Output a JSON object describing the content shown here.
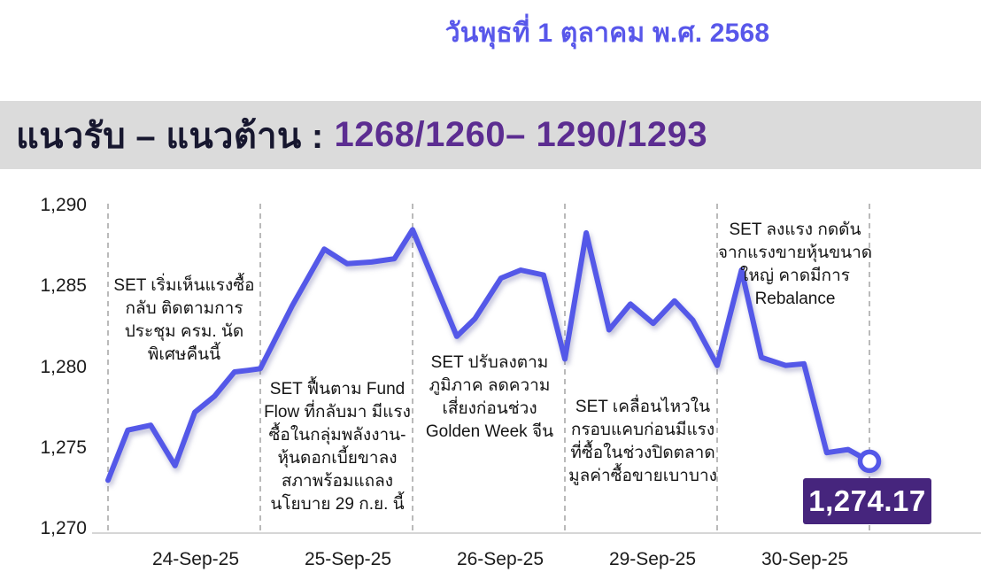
{
  "page": {
    "date_header": "วันพุธที่ 1 ตุลาคม พ.ศ. 2568"
  },
  "header": {
    "label": "แนวรับ – แนวต้าน :",
    "values": "1268/1260– 1290/1293"
  },
  "colors": {
    "date_text": "#5857EA",
    "header_bg": "#DBDBDB",
    "header_label_text": "#17172F",
    "header_values_text": "#5C2D91",
    "line": "#5458E8",
    "day_separator": "#A9A9A9",
    "axis_line": "#C9C9C9",
    "value_box_bg": "#46257D",
    "value_box_text": "#FFFFFF"
  },
  "chart_data": {
    "type": "line",
    "title": "SET Index intraday, 24–30 Sep 2025",
    "xlabel": "",
    "ylabel": "",
    "ylim": [
      1270,
      1290
    ],
    "xlim": [
      0,
      5
    ],
    "yticks": [
      1290,
      1285,
      1280,
      1275,
      1270
    ],
    "ytick_labels": [
      "1,290",
      "1,285",
      "1,280",
      "1,275",
      "1,270"
    ],
    "categories": [
      "24-Sep-25",
      "25-Sep-25",
      "26-Sep-25",
      "29-Sep-25",
      "30-Sep-25"
    ],
    "grid": "vertical dashed day-separator lines, no horizontal gridlines",
    "legend_position": "none",
    "series": [
      {
        "name": "SET Index",
        "points": [
          [
            0.0,
            1273.0
          ],
          [
            0.13,
            1276.1
          ],
          [
            0.28,
            1276.4
          ],
          [
            0.44,
            1273.9
          ],
          [
            0.57,
            1277.2
          ],
          [
            0.7,
            1278.2
          ],
          [
            0.83,
            1279.7
          ],
          [
            0.92,
            1279.8
          ],
          [
            1.0,
            1279.9
          ],
          [
            1.21,
            1283.8
          ],
          [
            1.42,
            1287.3
          ],
          [
            1.57,
            1286.4
          ],
          [
            1.73,
            1286.5
          ],
          [
            1.88,
            1286.7
          ],
          [
            2.0,
            1288.5
          ],
          [
            2.29,
            1281.9
          ],
          [
            2.41,
            1283.0
          ],
          [
            2.58,
            1285.5
          ],
          [
            2.71,
            1286.0
          ],
          [
            2.86,
            1285.7
          ],
          [
            3.0,
            1280.5
          ],
          [
            3.14,
            1288.3
          ],
          [
            3.29,
            1282.3
          ],
          [
            3.43,
            1283.9
          ],
          [
            3.58,
            1282.7
          ],
          [
            3.72,
            1284.1
          ],
          [
            3.84,
            1282.9
          ],
          [
            4.0,
            1280.1
          ],
          [
            4.16,
            1286.0
          ],
          [
            4.29,
            1280.6
          ],
          [
            4.45,
            1280.1
          ],
          [
            4.57,
            1280.2
          ],
          [
            4.72,
            1274.7
          ],
          [
            4.86,
            1274.9
          ],
          [
            5.0,
            1274.17
          ]
        ]
      }
    ],
    "last_value": 1274.17,
    "last_value_label": "1,274.17",
    "annotations": [
      {
        "day": "24-Sep-25",
        "text": "SET เริ่มเห็นแรงซื้อ\nกลับ ติดตามการ\nประชุม ครม. นัด\nพิเศษคืนนี้"
      },
      {
        "day": "25-Sep-25",
        "text": "SET ฟื้นตาม Fund\nFlow ที่กลับมา มีแรง\nซื้อในกลุ่มพลังงาน-\nหุ้นดอกเบี้ยขาลง\nสภาพร้อมแถลง\nนโยบาย 29 ก.ย. นี้"
      },
      {
        "day": "26-Sep-25",
        "text": "SET ปรับลงตาม\nภูมิภาค ลดความ\nเสี่ยงก่อนช่วง\nGolden Week จีน"
      },
      {
        "day": "29-Sep-25",
        "text": "SET เคลื่อนไหวใน\nกรอบแคบก่อนมีแรง\nที่ซื้อในช่วงปิดตลาด\nมูลค่าซื้อขายเบาบาง"
      },
      {
        "day": "30-Sep-25",
        "text": "SET ลงแรง กดดัน\nจากแรงขายหุ้นขนาด\nใหญ่ คาดมีการ\nRebalance"
      }
    ]
  }
}
